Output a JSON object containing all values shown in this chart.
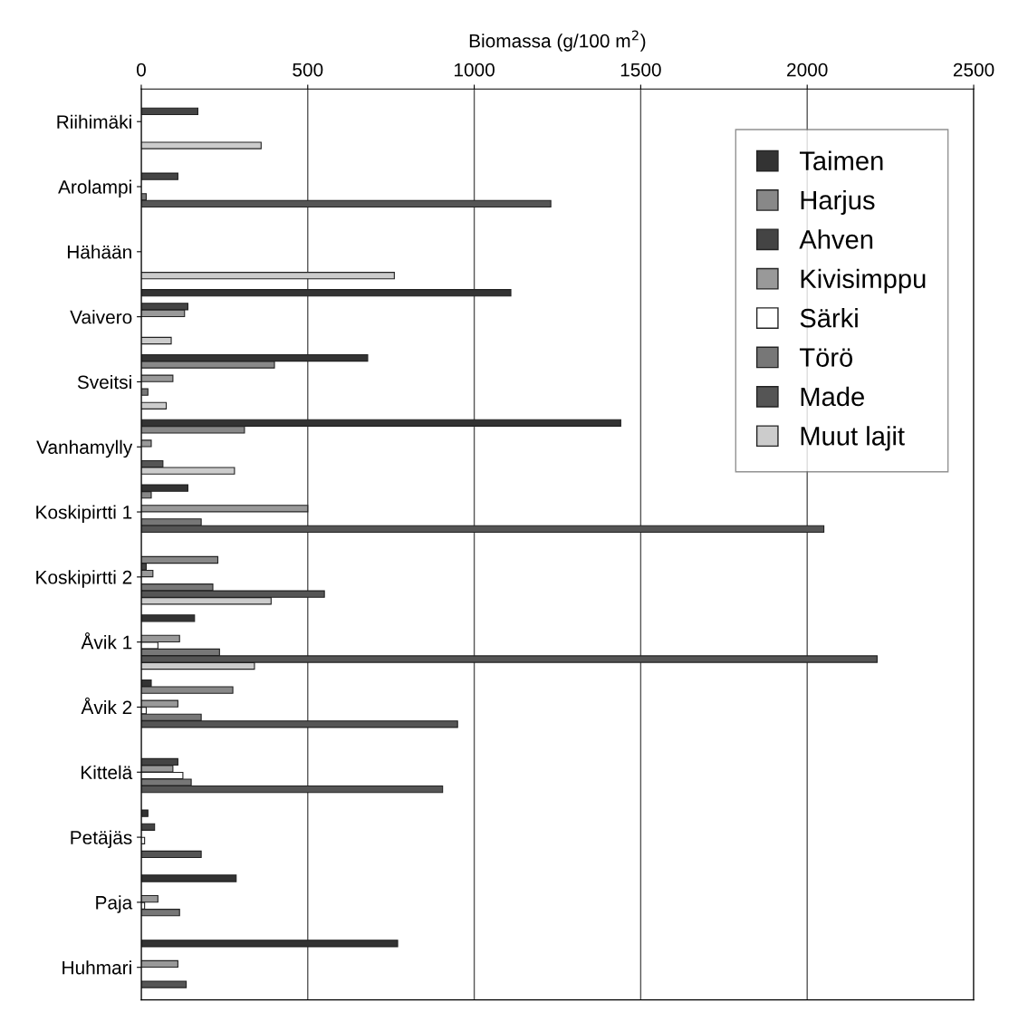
{
  "chart_data": {
    "type": "bar",
    "orientation": "horizontal",
    "xlabel": "Biomassa (g/100 m$^{2}$)",
    "categories": [
      "Riihimäki",
      "Arolampi",
      "Hähään",
      "Vaivero",
      "Sveitsi",
      "Vanhamylly",
      "Koskipirtti 1",
      "Koskipirtti 2",
      "Åvik 1",
      "Åvik 2",
      "Kittelä",
      "Petäjäs",
      "Paja",
      "Huhmari"
    ],
    "series": [
      {
        "name": "Taimen",
        "color": "#333333",
        "values": [
          0,
          0,
          0,
          1110,
          680,
          1440,
          140,
          0,
          160,
          30,
          0,
          20,
          285,
          770
        ]
      },
      {
        "name": "Harjus",
        "color": "#888888",
        "values": [
          0,
          0,
          0,
          0,
          400,
          310,
          30,
          230,
          0,
          275,
          0,
          0,
          0,
          0
        ]
      },
      {
        "name": "Ahven",
        "color": "#444444",
        "values": [
          170,
          110,
          0,
          140,
          0,
          0,
          0,
          15,
          0,
          0,
          110,
          40,
          0,
          0
        ]
      },
      {
        "name": "Kivisimppu",
        "color": "#999999",
        "values": [
          0,
          0,
          0,
          130,
          95,
          30,
          500,
          35,
          115,
          110,
          95,
          0,
          50,
          110
        ]
      },
      {
        "name": "Särki",
        "color": "#ffffff",
        "values": [
          0,
          0,
          0,
          0,
          0,
          0,
          0,
          0,
          50,
          15,
          125,
          10,
          10,
          0
        ]
      },
      {
        "name": "Törö",
        "color": "#777777",
        "values": [
          0,
          15,
          0,
          0,
          20,
          0,
          180,
          215,
          235,
          180,
          150,
          0,
          115,
          0
        ]
      },
      {
        "name": "Made",
        "color": "#555555",
        "values": [
          0,
          1230,
          0,
          0,
          0,
          65,
          2050,
          550,
          2210,
          950,
          905,
          180,
          0,
          135
        ]
      },
      {
        "name": "Muut lajit",
        "color": "#cccccc",
        "values": [
          360,
          0,
          760,
          90,
          75,
          280,
          0,
          390,
          340,
          0,
          0,
          0,
          0,
          0
        ]
      }
    ],
    "xlim": [
      0,
      2500
    ],
    "xticks": [
      0,
      500,
      1000,
      1500,
      2000,
      2500
    ],
    "grid": "x",
    "legend": "top right"
  }
}
